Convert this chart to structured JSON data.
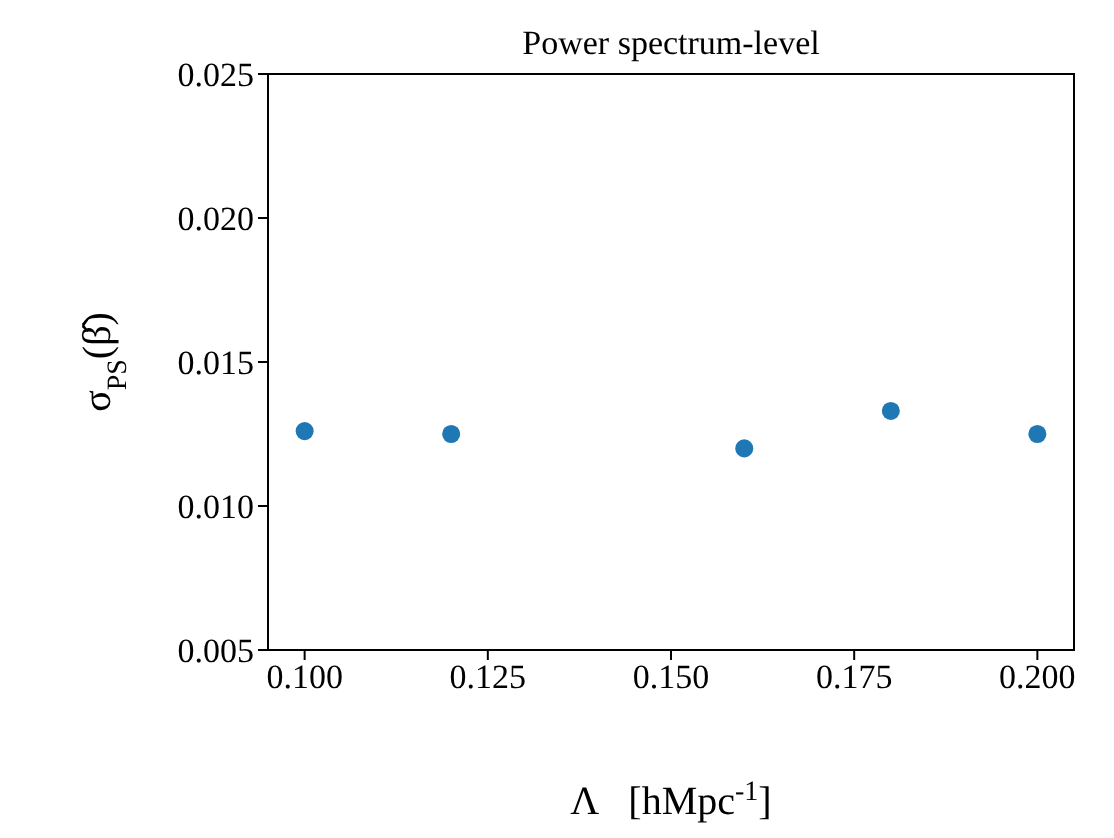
{
  "chart_data": {
    "type": "scatter",
    "title": "Power spectrum-level",
    "xlabel": "Λ   [hMpc$^{-1}$]",
    "ylabel": "σ$_{PS}$(β̂)",
    "x": [
      0.1,
      0.12,
      0.16,
      0.18,
      0.2
    ],
    "series": [
      {
        "color": "#1f77b4",
        "values": [
          0.0126,
          0.0125,
          0.012,
          0.0133,
          0.0125
        ]
      }
    ],
    "xlim": [
      0.095,
      0.205
    ],
    "xticks": [
      {
        "value": 0.1,
        "label": "0.100"
      },
      {
        "value": 0.125,
        "label": "0.125"
      },
      {
        "value": 0.15,
        "label": "0.150"
      },
      {
        "value": 0.175,
        "label": "0.175"
      },
      {
        "value": 0.2,
        "label": "0.200"
      }
    ],
    "ylim": [
      0.005,
      0.025
    ],
    "yticks": [
      {
        "value": 0.005,
        "label": "0.005"
      },
      {
        "value": 0.01,
        "label": "0.010"
      },
      {
        "value": 0.015,
        "label": "0.015"
      },
      {
        "value": 0.02,
        "label": "0.020"
      },
      {
        "value": 0.025,
        "label": "0.025"
      }
    ],
    "marker": "circle"
  }
}
